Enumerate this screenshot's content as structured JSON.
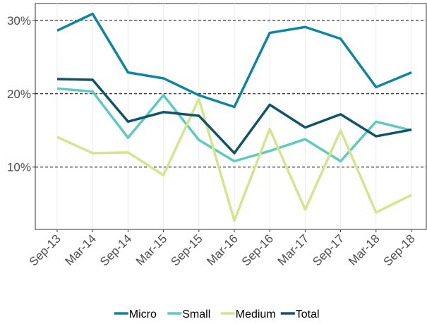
{
  "chart_data": {
    "type": "line",
    "categories": [
      "Sep-13",
      "Mar-14",
      "Sep-14",
      "Mar-15",
      "Sep-15",
      "Mar-16",
      "Sep-16",
      "Mar-17",
      "Sep-17",
      "Mar-18",
      "Sep-18"
    ],
    "series": [
      {
        "name": "Micro",
        "color": "#0e86a0",
        "values": [
          28.6,
          30.9,
          22.9,
          22.1,
          19.8,
          18.2,
          28.3,
          29.1,
          27.5,
          20.9,
          22.9
        ]
      },
      {
        "name": "Small",
        "color": "#5ecac0",
        "values": [
          20.7,
          20.3,
          14.0,
          19.8,
          13.7,
          10.8,
          12.2,
          13.8,
          10.8,
          16.2,
          15.0
        ]
      },
      {
        "name": "Medium",
        "color": "#d5e58e",
        "values": [
          14.1,
          11.9,
          12.0,
          8.9,
          19.3,
          2.7,
          15.2,
          4.2,
          15.0,
          3.8,
          6.2
        ]
      },
      {
        "name": "Total",
        "color": "#11536b",
        "values": [
          22.0,
          21.9,
          16.2,
          17.5,
          17.0,
          11.9,
          18.5,
          15.4,
          17.2,
          14.2,
          15.1
        ]
      }
    ],
    "ylim": [
      1.5,
      32.3
    ],
    "yticks": [
      {
        "value": 10,
        "label": "10%"
      },
      {
        "value": 20,
        "label": "20%"
      },
      {
        "value": 30,
        "label": "30%"
      }
    ],
    "grid": true
  }
}
